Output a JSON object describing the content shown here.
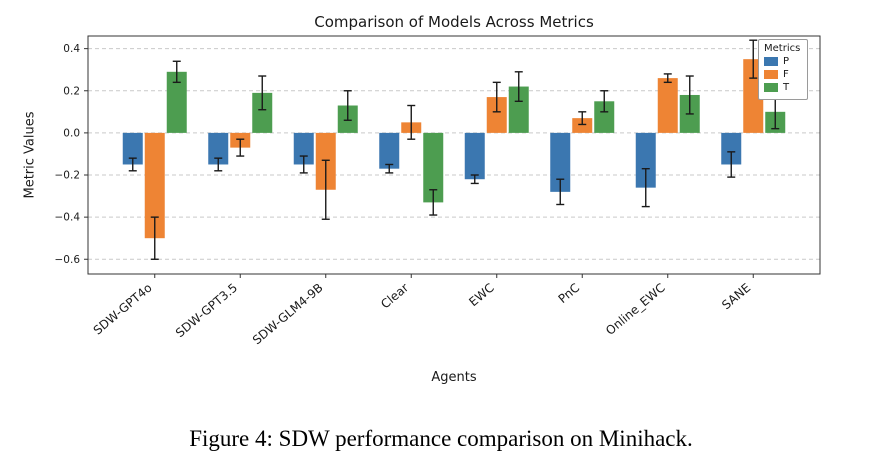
{
  "page": {
    "background": "#ffffff"
  },
  "caption": "Figure 4: SDW performance comparison on Minihack.",
  "chart_data": {
    "type": "bar",
    "title": "Comparison of Models Across Metrics",
    "xlabel": "Agents",
    "ylabel": "Metric Values",
    "categories": [
      "SDW-GPT4o",
      "SDW-GPT3.5",
      "SDW-GLM4-9B",
      "Clear",
      "EWC",
      "PnC",
      "Online_EWC",
      "SANE"
    ],
    "series": [
      {
        "name": "P",
        "color": "#3b77b0",
        "values": [
          -0.15,
          -0.15,
          -0.15,
          -0.17,
          -0.22,
          -0.28,
          -0.26,
          -0.15
        ],
        "errors": [
          0.03,
          0.03,
          0.04,
          0.02,
          0.02,
          0.06,
          0.09,
          0.06
        ]
      },
      {
        "name": "F",
        "color": "#ee8434",
        "values": [
          -0.5,
          -0.07,
          -0.27,
          0.05,
          0.17,
          0.07,
          0.26,
          0.35
        ],
        "errors": [
          0.1,
          0.04,
          0.14,
          0.08,
          0.07,
          0.03,
          0.02,
          0.09
        ]
      },
      {
        "name": "T",
        "color": "#4d9d50",
        "values": [
          0.29,
          0.19,
          0.13,
          -0.33,
          0.22,
          0.15,
          0.18,
          0.1
        ],
        "errors": [
          0.05,
          0.08,
          0.07,
          0.06,
          0.07,
          0.05,
          0.09,
          0.08
        ]
      }
    ],
    "yticks": [
      0.4,
      0.2,
      0.0,
      -0.2,
      -0.4,
      -0.6
    ],
    "ylim": [
      -0.67,
      0.46
    ],
    "legend_title": "Metrics",
    "legend_position": "upper right",
    "grid": true,
    "error_bar_color": "#1a1a1a",
    "grid_color": "#c9c9c9",
    "spine_color": "#333333"
  }
}
